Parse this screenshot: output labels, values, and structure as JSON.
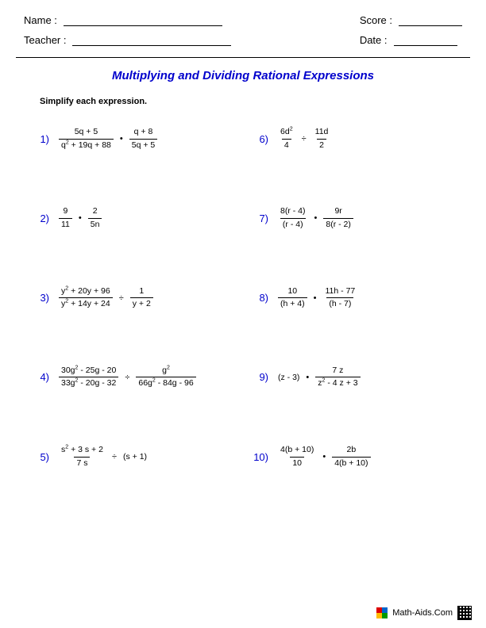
{
  "header": {
    "name_label": "Name :",
    "teacher_label": "Teacher :",
    "score_label": "Score :",
    "date_label": "Date :"
  },
  "title": "Multiplying and Dividing Rational Expressions",
  "instructions": "Simplify each expression.",
  "problems": [
    {
      "n": "1)",
      "a_num": "5q + 5",
      "a_den": "q² + 19q + 88",
      "op": "•",
      "b_num": "q + 8",
      "b_den": "5q + 5"
    },
    {
      "n": "6)",
      "a_num": "6d²",
      "a_den": "4",
      "op": "÷",
      "b_num": "11d",
      "b_den": "2"
    },
    {
      "n": "2)",
      "a_num": "9",
      "a_den": "11",
      "op": "•",
      "b_num": "2",
      "b_den": "5n"
    },
    {
      "n": "7)",
      "a_num": "8(r - 4)",
      "a_den": "(r - 4)",
      "op": "•",
      "b_num": "9r",
      "b_den": "8(r - 2)"
    },
    {
      "n": "3)",
      "a_num": "y² + 20y + 96",
      "a_den": "y² + 14y + 24",
      "op": "÷",
      "b_num": "1",
      "b_den": "y + 2"
    },
    {
      "n": "8)",
      "a_num": "10",
      "a_den": "(h + 4)",
      "op": "•",
      "b_num": "11h - 77",
      "b_den": "(h - 7)"
    },
    {
      "n": "4)",
      "a_num": "30g² - 25g - 20",
      "a_den": "33g² - 20g - 32",
      "op": "÷",
      "b_num": "g²",
      "b_den": "66g² - 84g - 96"
    },
    {
      "n": "9)",
      "plain_a": "(z - 3)",
      "op": "•",
      "b_num": "7 z",
      "b_den": "z² - 4 z + 3"
    },
    {
      "n": "5)",
      "a_num": "s² + 3 s + 2",
      "a_den": "7 s",
      "op": "÷",
      "plain_b": "(s + 1)"
    },
    {
      "n": "10)",
      "a_num": "4(b + 10)",
      "a_den": "10",
      "op": "•",
      "b_num": "2b",
      "b_den": "4(b + 10)"
    }
  ],
  "footer": {
    "site": "Math-Aids.Com"
  },
  "colors": {
    "accent": "#0000cc",
    "text": "#000000",
    "bg": "#ffffff"
  }
}
